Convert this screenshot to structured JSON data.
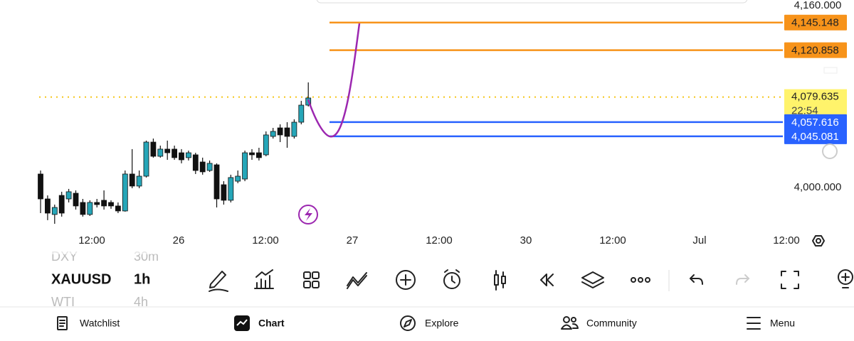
{
  "symbols": [
    {
      "name": "DXY",
      "interval": "30m"
    },
    {
      "name": "XAUUSD",
      "interval": "1h"
    },
    {
      "name": "WTI",
      "interval": "4h"
    }
  ],
  "nav": [
    "Watchlist",
    "Chart",
    "Explore",
    "Community",
    "Menu"
  ],
  "chart_data": {
    "type": "candlestick",
    "up_color": "#26a6b8",
    "down_color": "#111111",
    "x_labels": [
      "12:00",
      "26",
      "12:00",
      "27",
      "12:00",
      "30",
      "12:00",
      "Jul",
      "12:00"
    ],
    "ylim": [
      3965,
      4165
    ],
    "yticks": [
      {
        "value": 4160,
        "label": "4,160.000"
      },
      {
        "value": 4000,
        "label": "4,000.000"
      }
    ],
    "price_lines": [
      {
        "value": 4145.148,
        "label": "4,145.148",
        "color": "#f7931a"
      },
      {
        "value": 4120.858,
        "label": "4,120.858",
        "color": "#f7931a"
      },
      {
        "value": 4057.616,
        "label": "4,057.616",
        "color": "#2962ff"
      },
      {
        "value": 4045.081,
        "label": "4,045.081",
        "color": "#2962ff"
      }
    ],
    "last_price": {
      "value": 4079.635,
      "label": "4,079.635",
      "countdown": "22:54",
      "color": "#fff36b"
    },
    "open": [
      4011.9,
      3990,
      3976.3,
      3993.1,
      3990,
      3995,
      3986.9,
      3976.3,
      3986.9,
      3988.8,
      3986.9,
      3983.8,
      3979.4,
      4011.9,
      4001.3,
      4010,
      4040,
      4027.5,
      4033.8,
      4033.8,
      4030.6,
      4026.3,
      4028.8,
      4022.5,
      4015,
      4020,
      4002.5,
      3988.8,
      4005.6,
      4007.5,
      4030.6,
      4030.6,
      4028.8,
      4045,
      4052.5,
      4052.5,
      4045,
      4057.5,
      4072.5
    ],
    "high": [
      4015,
      3993.1,
      3985,
      3996.3,
      3998.8,
      3997.5,
      3990,
      3988.8,
      3990,
      3997.5,
      3988.8,
      3986.9,
      4015,
      4033.8,
      4015,
      4041.3,
      4043.1,
      4036.9,
      4041.3,
      4036.9,
      4033.8,
      4032.5,
      4030.6,
      4026.3,
      4023.8,
      4021.3,
      4005.6,
      4011.3,
      4015,
      4032.5,
      4033.8,
      4035,
      4049.4,
      4052.5,
      4055.6,
      4057.5,
      4060,
      4076.3,
      4092.5
    ],
    "low": [
      3977.5,
      3971.3,
      3968.1,
      3974.4,
      3986.9,
      3980.6,
      3974.4,
      3975,
      3982.5,
      3980.6,
      3981.3,
      3977.5,
      3978.8,
      3999.4,
      3999.4,
      4008.8,
      4026.3,
      4026.3,
      4024.4,
      4024.4,
      4021.3,
      4023.8,
      4011.9,
      4011.3,
      4013.8,
      3982.5,
      3985,
      3986.9,
      4003.8,
      4005.6,
      4024.4,
      4023.8,
      4027.5,
      4043.1,
      4040,
      4035,
      4043.1,
      4055.6,
      4071.3
    ],
    "close": [
      3990,
      3977.5,
      3982.5,
      3977.5,
      3996.3,
      3983.8,
      3976.3,
      3986.9,
      3985,
      3983.8,
      3983.8,
      3979.4,
      4011.9,
      4001.3,
      4010,
      4040,
      4027.5,
      4033.8,
      4030.6,
      4026.3,
      4024.4,
      4030.6,
      4015,
      4013.8,
      4021.3,
      3990,
      3988.8,
      4008.8,
      4010,
      4030.6,
      4028.8,
      4026.3,
      4046.3,
      4049.4,
      4046.3,
      4045,
      4057.5,
      4072.5,
      4078.8
    ]
  }
}
